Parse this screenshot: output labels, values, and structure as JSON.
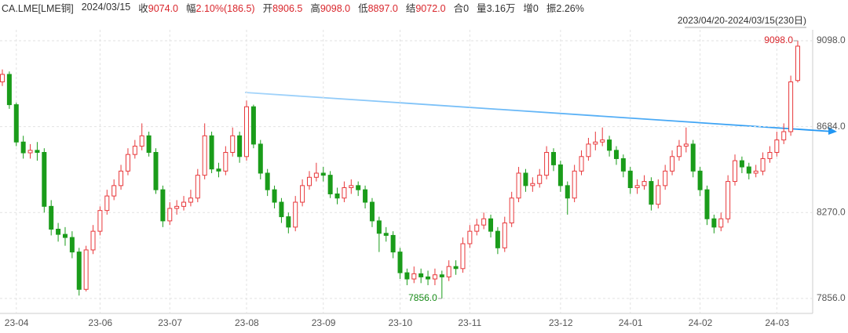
{
  "header": {
    "symbol": "CA.LME[LME铜]",
    "date": "2024/03/15",
    "fields": [
      {
        "label": "收",
        "value": "9074.0",
        "color": "#d9262c"
      },
      {
        "label": "幅",
        "value": "2.10%(186.5)",
        "color": "#d9262c"
      },
      {
        "label": "开",
        "value": "8906.5",
        "color": "#d9262c"
      },
      {
        "label": "高",
        "value": "9098.0",
        "color": "#d9262c"
      },
      {
        "label": "低",
        "value": "8897.0",
        "color": "#d9262c"
      },
      {
        "label": "结",
        "value": "9072.0",
        "color": "#d9262c"
      },
      {
        "label": "合",
        "value": "0",
        "color": "#333333"
      },
      {
        "label": "量",
        "value": "3.16万",
        "color": "#333333"
      },
      {
        "label": "增",
        "value": "0",
        "color": "#333333"
      },
      {
        "label": "振",
        "value": "2.26%",
        "color": "#333333"
      }
    ]
  },
  "chart_data": {
    "type": "candlestick",
    "range_label": "2023/04/20-2024/03/15(230日)",
    "up_color": "#e8383b",
    "down_color": "#1a9c1a",
    "grid": true,
    "high_label": "9098.0",
    "low_label": "7856.0",
    "ylim": [
      7784,
      9151
    ],
    "yticks": [
      {
        "value": 7856,
        "label": "7856.0"
      },
      {
        "value": 8270,
        "label": "8270.0"
      },
      {
        "value": 8684,
        "label": "8684.0"
      },
      {
        "value": 9098,
        "label": "9098.0"
      }
    ],
    "categories": [
      null,
      null,
      "23-04",
      null,
      null,
      null,
      null,
      null,
      null,
      null,
      null,
      null,
      null,
      null,
      "23-06",
      null,
      null,
      null,
      null,
      null,
      null,
      null,
      null,
      null,
      "23-07",
      null,
      null,
      null,
      null,
      null,
      null,
      null,
      null,
      null,
      null,
      "23-08",
      null,
      null,
      null,
      null,
      null,
      null,
      null,
      null,
      null,
      null,
      "23-09",
      null,
      null,
      null,
      null,
      null,
      null,
      null,
      null,
      null,
      null,
      "23-10",
      null,
      null,
      null,
      null,
      null,
      null,
      null,
      null,
      null,
      "23-11",
      null,
      null,
      null,
      null,
      null,
      null,
      null,
      null,
      null,
      null,
      null,
      null,
      "23-12",
      null,
      null,
      null,
      null,
      null,
      null,
      null,
      null,
      null,
      "24-01",
      null,
      null,
      null,
      null,
      null,
      null,
      null,
      null,
      null,
      "24-02",
      null,
      null,
      null,
      null,
      null,
      null,
      null,
      null,
      null,
      null,
      "24-03",
      null,
      null,
      null
    ],
    "open": [
      8900,
      8936,
      8790,
      8610,
      8558,
      8570,
      8560,
      8300,
      8190,
      8165,
      8150,
      8080,
      7900,
      8090,
      8180,
      8280,
      8350,
      8400,
      8470,
      8550,
      8590,
      8640,
      8560,
      8380,
      8230,
      8290,
      8300,
      8320,
      8340,
      8450,
      8640,
      8480,
      8470,
      8560,
      8640,
      8540,
      8780,
      8600,
      8460,
      8380,
      8320,
      8250,
      8200,
      8320,
      8400,
      8440,
      8460,
      8450,
      8360,
      8340,
      8390,
      8400,
      8380,
      8320,
      8230,
      8170,
      8160,
      8080,
      7980,
      7950,
      7975,
      7960,
      7950,
      7970,
      7960,
      8010,
      8000,
      8120,
      8180,
      8210,
      8240,
      8180,
      8100,
      8220,
      8340,
      8460,
      8400,
      8410,
      8450,
      8560,
      8500,
      8400,
      8340,
      8470,
      8540,
      8600,
      8610,
      8620,
      8570,
      8530,
      8470,
      8390,
      8400,
      8420,
      8310,
      8400,
      8470,
      8540,
      8590,
      8600,
      8470,
      8380,
      8240,
      8200,
      8240,
      8420,
      8520,
      8490,
      8460,
      8470,
      8530,
      8560,
      8620,
      8660,
      8906.5
    ],
    "high": [
      8960,
      8950,
      8800,
      8640,
      8600,
      8610,
      8580,
      8330,
      8220,
      8200,
      8180,
      8100,
      8110,
      8210,
      8300,
      8380,
      8430,
      8500,
      8580,
      8620,
      8700,
      8660,
      8580,
      8400,
      8320,
      8330,
      8350,
      8380,
      8480,
      8700,
      8660,
      8510,
      8590,
      8680,
      8660,
      8810,
      8790,
      8620,
      8480,
      8400,
      8340,
      8270,
      8350,
      8430,
      8470,
      8510,
      8490,
      8470,
      8390,
      8420,
      8430,
      8420,
      8400,
      8340,
      8250,
      8200,
      8180,
      8100,
      8000,
      8010,
      8000,
      7990,
      8000,
      7990,
      8040,
      8040,
      8150,
      8210,
      8240,
      8270,
      8260,
      8200,
      8250,
      8370,
      8490,
      8480,
      8440,
      8480,
      8590,
      8580,
      8520,
      8420,
      8500,
      8570,
      8630,
      8660,
      8680,
      8640,
      8590,
      8550,
      8490,
      8430,
      8450,
      8440,
      8430,
      8500,
      8570,
      8620,
      8680,
      8620,
      8490,
      8400,
      8260,
      8270,
      8450,
      8550,
      8540,
      8510,
      8500,
      8560,
      8590,
      8660,
      8700,
      8930,
      9098
    ],
    "low": [
      8880,
      8770,
      8590,
      8530,
      8530,
      8520,
      8270,
      8160,
      8130,
      8110,
      8050,
      7870,
      7890,
      8070,
      8160,
      8260,
      8330,
      8380,
      8450,
      8530,
      8570,
      8540,
      8360,
      8200,
      8210,
      8260,
      8280,
      8300,
      8320,
      8430,
      8460,
      8440,
      8450,
      8540,
      8510,
      8520,
      8580,
      8430,
      8350,
      8290,
      8220,
      8170,
      8180,
      8300,
      8380,
      8420,
      8420,
      8340,
      8310,
      8320,
      8360,
      8350,
      8290,
      8200,
      8080,
      8130,
      8050,
      7950,
      7920,
      7930,
      7930,
      7920,
      7920,
      7856,
      7940,
      7970,
      7980,
      8100,
      8160,
      8190,
      8150,
      8070,
      8080,
      8200,
      8320,
      8370,
      8370,
      8390,
      8430,
      8470,
      8370,
      8260,
      8320,
      8450,
      8520,
      8570,
      8590,
      8540,
      8500,
      8440,
      8360,
      8360,
      8380,
      8280,
      8290,
      8380,
      8450,
      8520,
      8560,
      8440,
      8350,
      8210,
      8170,
      8180,
      8220,
      8400,
      8460,
      8430,
      8440,
      8450,
      8510,
      8540,
      8600,
      8640,
      8897
    ],
    "close": [
      8936,
      8790,
      8610,
      8558,
      8570,
      8560,
      8300,
      8190,
      8165,
      8150,
      8080,
      7900,
      8090,
      8180,
      8280,
      8350,
      8400,
      8470,
      8550,
      8590,
      8640,
      8560,
      8380,
      8230,
      8290,
      8300,
      8320,
      8340,
      8450,
      8640,
      8480,
      8470,
      8560,
      8640,
      8540,
      8780,
      8600,
      8460,
      8380,
      8320,
      8250,
      8200,
      8320,
      8400,
      8440,
      8460,
      8450,
      8360,
      8340,
      8390,
      8400,
      8380,
      8320,
      8230,
      8170,
      8160,
      8080,
      7980,
      7950,
      7975,
      7960,
      7950,
      7970,
      7960,
      8010,
      8000,
      8120,
      8180,
      8210,
      8240,
      8180,
      8100,
      8220,
      8340,
      8460,
      8400,
      8410,
      8450,
      8560,
      8500,
      8400,
      8340,
      8470,
      8540,
      8600,
      8610,
      8620,
      8570,
      8530,
      8470,
      8390,
      8400,
      8420,
      8310,
      8400,
      8470,
      8540,
      8590,
      8600,
      8470,
      8380,
      8240,
      8200,
      8240,
      8420,
      8520,
      8490,
      8460,
      8470,
      8530,
      8560,
      8620,
      8660,
      8900,
      9072
    ]
  }
}
